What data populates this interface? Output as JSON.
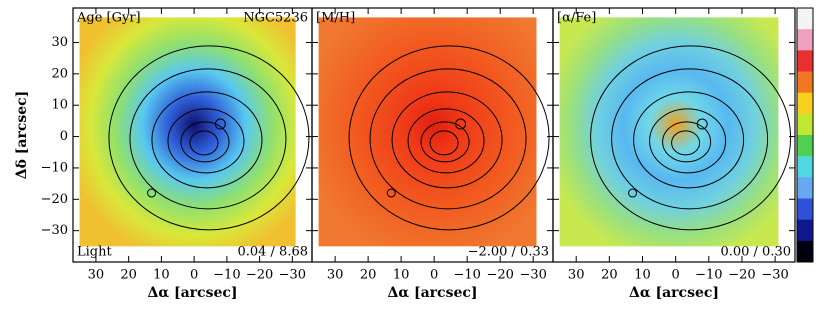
{
  "chart_data": [
    {
      "type": "map",
      "title": "Age [Gyr]",
      "object": "NGC5236",
      "weighting": "Light",
      "range_label": "0.04 / 8.68",
      "xlabel": "Δα [arcsec]",
      "ylabel": "Δδ [arcsec]",
      "xlim": [
        37,
        -36
      ],
      "ylim": [
        -40,
        41
      ],
      "xticks": [
        30,
        20,
        10,
        0,
        {
          "value": -10,
          "label": "−10"
        },
        {
          "value": -20,
          "label": "−20"
        },
        {
          "value": -30,
          "label": "−30"
        }
      ],
      "yticks": [
        {
          "value": -30,
          "label": "−30"
        },
        {
          "value": -20,
          "label": "−20"
        },
        {
          "value": -10,
          "label": "−10"
        },
        0,
        10,
        20,
        30
      ],
      "map_colors": [
        "#10106e",
        "#2f5fd8",
        "#59c8f0",
        "#8fe070",
        "#d8e83a",
        "#f0c030"
      ]
    },
    {
      "type": "map",
      "title": "[M/H]",
      "range_label": "−2.00 / 0.33",
      "xlabel": "Δα [arcsec]",
      "xlim": [
        37,
        -36
      ],
      "ylim": [
        -40,
        41
      ],
      "xticks": [
        30,
        20,
        10,
        0,
        {
          "value": -10,
          "label": "−10"
        },
        {
          "value": -20,
          "label": "−20"
        },
        {
          "value": -30,
          "label": "−30"
        }
      ],
      "map_colors": [
        "#e02010",
        "#f03818",
        "#f04a1c",
        "#f25a20",
        "#f06a28",
        "#f07830"
      ]
    },
    {
      "type": "map",
      "title": "[α/Fe]",
      "range_label": "0.00 / 0.30",
      "xlabel": "Δα [arcsec]",
      "xlim": [
        37,
        -36
      ],
      "ylim": [
        -40,
        41
      ],
      "xticks": [
        30,
        20,
        10,
        0,
        {
          "value": -10,
          "label": "−10"
        },
        {
          "value": -20,
          "label": "−20"
        },
        {
          "value": -30,
          "label": "−30"
        }
      ],
      "map_colors": [
        "#f0a020",
        "#70d8e8",
        "#58b8f0",
        "#70d0e0",
        "#98e080",
        "#c8e850"
      ]
    }
  ],
  "colorbar": {
    "colors": [
      "#f4f4f4",
      "#f0a0c0",
      "#e83030",
      "#f07820",
      "#f8d020",
      "#c0e830",
      "#50d050",
      "#50d8e0",
      "#68a8f0",
      "#3050d8",
      "#101890",
      "#000010"
    ]
  }
}
